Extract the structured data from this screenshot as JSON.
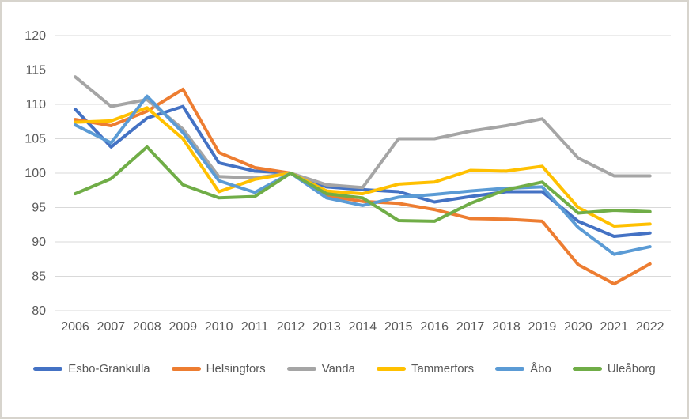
{
  "chart": {
    "background": "#ffffff",
    "frame_border_color": "#d7d4cd",
    "gridline_color": "#d9d9d9",
    "axis_label_color": "#595959",
    "legend_label_color": "#595959"
  },
  "chart_data": {
    "type": "line",
    "title": "",
    "xlabel": "",
    "ylabel": "",
    "x": [
      2006,
      2007,
      2008,
      2009,
      2010,
      2011,
      2012,
      2013,
      2014,
      2015,
      2016,
      2017,
      2018,
      2019,
      2020,
      2021,
      2022
    ],
    "yticks": [
      120,
      115,
      110,
      105,
      100,
      95,
      90,
      85,
      80
    ],
    "ylim": [
      80,
      120
    ],
    "grid": true,
    "legend_position": "bottom",
    "series": [
      {
        "name": "Esbo-Grankulla",
        "color": "#4472C4",
        "values": [
          109.3,
          103.8,
          108.0,
          109.7,
          101.5,
          100.3,
          100.0,
          98.0,
          97.6,
          97.3,
          95.8,
          96.6,
          97.3,
          97.3,
          93.0,
          90.8,
          91.3
        ]
      },
      {
        "name": "Helsingfors",
        "color": "#ED7D31",
        "values": [
          107.8,
          106.9,
          109.0,
          112.2,
          103.0,
          100.8,
          100.0,
          96.7,
          95.9,
          95.6,
          94.7,
          93.4,
          93.3,
          93.0,
          86.7,
          83.9,
          86.8
        ]
      },
      {
        "name": "Vanda",
        "color": "#A5A5A5",
        "values": [
          114.0,
          109.7,
          110.7,
          106.4,
          99.5,
          99.3,
          100.0,
          98.3,
          97.9,
          105.0,
          105.0,
          106.1,
          106.9,
          107.9,
          102.2,
          99.6,
          99.6
        ]
      },
      {
        "name": "Tammerfors",
        "color": "#FFC000",
        "values": [
          107.4,
          107.6,
          109.5,
          105.0,
          97.3,
          99.1,
          100.0,
          97.4,
          97.0,
          98.4,
          98.7,
          100.4,
          100.3,
          101.0,
          95.0,
          92.3,
          92.6
        ]
      },
      {
        "name": "Åbo",
        "color": "#5B9BD5",
        "values": [
          107.0,
          104.4,
          111.2,
          105.9,
          98.9,
          97.2,
          100.0,
          96.4,
          95.3,
          96.5,
          96.9,
          97.4,
          97.8,
          98.0,
          92.1,
          88.2,
          89.3
        ]
      },
      {
        "name": "Uleåborg",
        "color": "#70AD47",
        "values": [
          97.0,
          99.2,
          103.8,
          98.3,
          96.4,
          96.6,
          100.0,
          97.0,
          96.4,
          93.1,
          93.0,
          95.6,
          97.6,
          98.7,
          94.2,
          94.6,
          94.4
        ]
      }
    ]
  }
}
